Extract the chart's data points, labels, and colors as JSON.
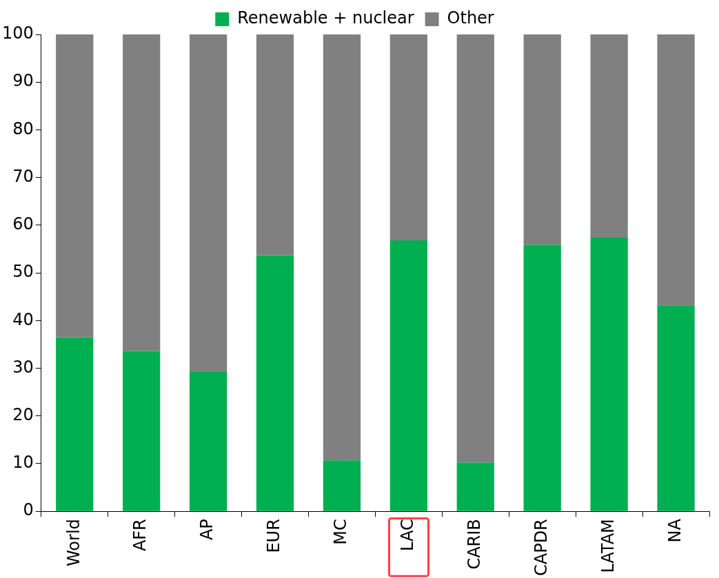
{
  "chart_data": {
    "type": "bar",
    "stacked": true,
    "categories": [
      "World",
      "AFR",
      "AP",
      "EUR",
      "MC",
      "LAC",
      "CARIB",
      "CAPDR",
      "LATAM",
      "NA"
    ],
    "series": [
      {
        "name": "Renewable + nuclear",
        "color": "#00b050",
        "values": [
          36.5,
          33.6,
          29.2,
          53.7,
          10.7,
          56.8,
          10.2,
          55.9,
          57.4,
          43.2
        ]
      },
      {
        "name": "Other",
        "color": "#808080",
        "values": [
          63.5,
          66.4,
          70.8,
          46.3,
          89.3,
          43.2,
          89.8,
          44.1,
          42.6,
          56.8
        ]
      }
    ],
    "ylim": [
      0,
      100
    ],
    "yticks": [
      0,
      10,
      20,
      30,
      40,
      50,
      60,
      70,
      80,
      90,
      100
    ],
    "grid": false,
    "legend": "top"
  }
}
